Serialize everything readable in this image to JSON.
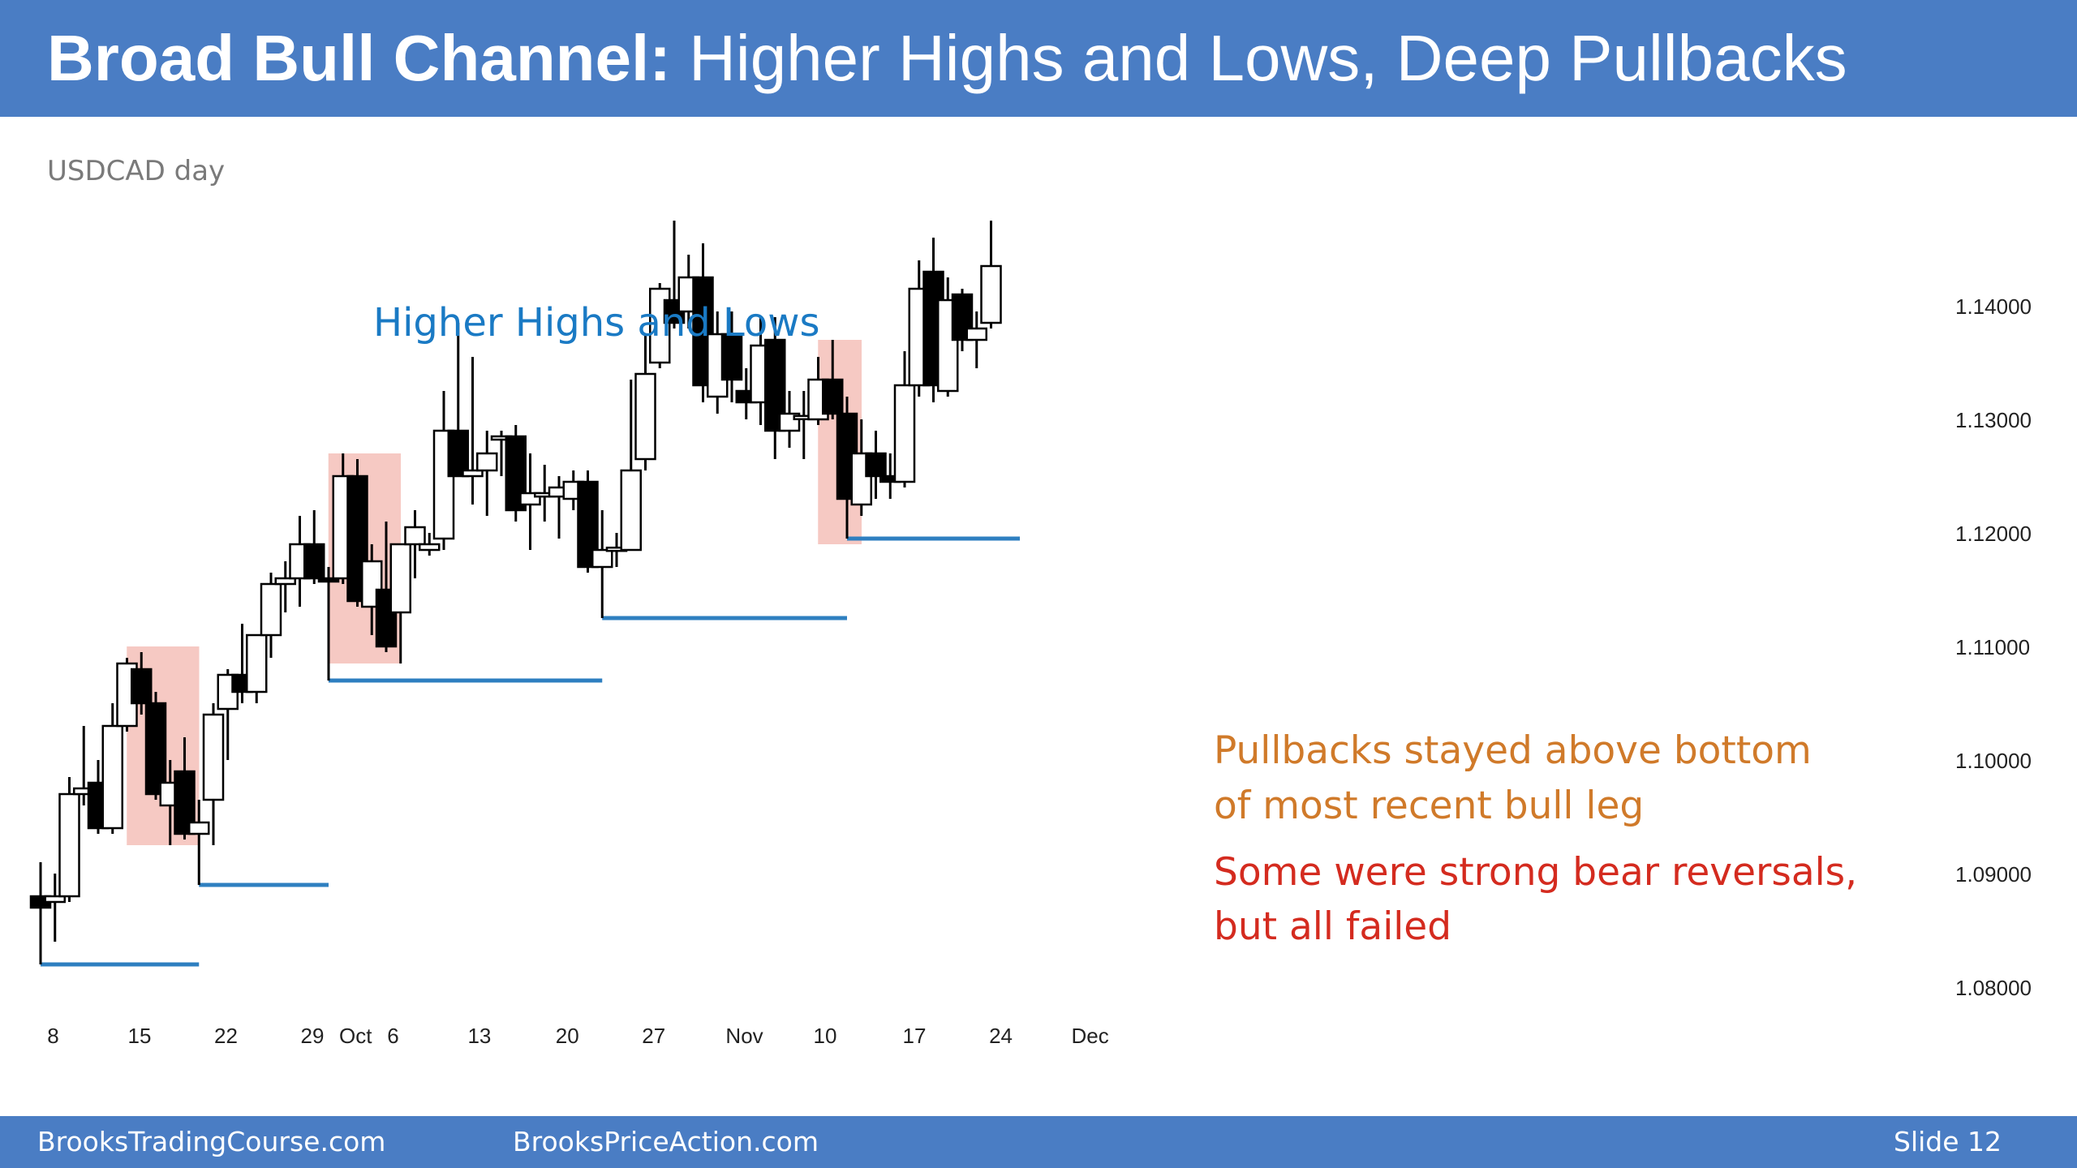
{
  "header": {
    "title_bold": "Broad Bull Channel:",
    "title_rest": "Higher Highs and Lows, Deep Pullbacks"
  },
  "chart_data": {
    "type": "candlestick",
    "subtitle": "USDCAD day",
    "ylim": [
      1.076,
      1.15
    ],
    "y_ticks": [
      "1.14000",
      "1.13000",
      "1.12000",
      "1.11000",
      "1.10000",
      "1.09000",
      "1.08000"
    ],
    "x_ticks": [
      "8",
      "15",
      "22",
      "29",
      "Oct",
      "6",
      "13",
      "20",
      "27",
      "Nov",
      "10",
      "17",
      "24",
      "Dec"
    ],
    "candles": [
      {
        "o": 1.088,
        "h": 1.091,
        "l": 1.082,
        "c": 1.087
      },
      {
        "o": 1.0875,
        "h": 1.09,
        "l": 1.084,
        "c": 1.088
      },
      {
        "o": 1.088,
        "h": 1.0985,
        "l": 1.0875,
        "c": 1.097
      },
      {
        "o": 1.097,
        "h": 1.103,
        "l": 1.096,
        "c": 1.0975
      },
      {
        "o": 1.098,
        "h": 1.1,
        "l": 1.0935,
        "c": 1.094
      },
      {
        "o": 1.094,
        "h": 1.105,
        "l": 1.0935,
        "c": 1.103
      },
      {
        "o": 1.103,
        "h": 1.109,
        "l": 1.1025,
        "c": 1.1085
      },
      {
        "o": 1.108,
        "h": 1.1095,
        "l": 1.104,
        "c": 1.105
      },
      {
        "o": 1.105,
        "h": 1.106,
        "l": 1.0965,
        "c": 1.097
      },
      {
        "o": 1.096,
        "h": 1.1,
        "l": 1.0925,
        "c": 1.098
      },
      {
        "o": 1.099,
        "h": 1.102,
        "l": 1.093,
        "c": 1.0935
      },
      {
        "o": 1.0935,
        "h": 1.0965,
        "l": 1.089,
        "c": 1.0945
      },
      {
        "o": 1.0965,
        "h": 1.105,
        "l": 1.0925,
        "c": 1.104
      },
      {
        "o": 1.1045,
        "h": 1.108,
        "l": 1.1,
        "c": 1.1075
      },
      {
        "o": 1.1075,
        "h": 1.112,
        "l": 1.105,
        "c": 1.106
      },
      {
        "o": 1.106,
        "h": 1.111,
        "l": 1.105,
        "c": 1.111
      },
      {
        "o": 1.111,
        "h": 1.1165,
        "l": 1.109,
        "c": 1.1155
      },
      {
        "o": 1.1155,
        "h": 1.1175,
        "l": 1.113,
        "c": 1.116
      },
      {
        "o": 1.116,
        "h": 1.1215,
        "l": 1.1135,
        "c": 1.119
      },
      {
        "o": 1.119,
        "h": 1.122,
        "l": 1.1155,
        "c": 1.116
      },
      {
        "o": 1.116,
        "h": 1.117,
        "l": 1.107,
        "c": 1.1158
      },
      {
        "o": 1.116,
        "h": 1.127,
        "l": 1.1155,
        "c": 1.125
      },
      {
        "o": 1.125,
        "h": 1.1265,
        "l": 1.1135,
        "c": 1.114
      },
      {
        "o": 1.1135,
        "h": 1.119,
        "l": 1.111,
        "c": 1.1175
      },
      {
        "o": 1.115,
        "h": 1.121,
        "l": 1.1095,
        "c": 1.11
      },
      {
        "o": 1.113,
        "h": 1.1185,
        "l": 1.1085,
        "c": 1.119
      },
      {
        "o": 1.119,
        "h": 1.122,
        "l": 1.116,
        "c": 1.1205
      },
      {
        "o": 1.1185,
        "h": 1.12,
        "l": 1.118,
        "c": 1.119
      },
      {
        "o": 1.1195,
        "h": 1.1325,
        "l": 1.1185,
        "c": 1.129
      },
      {
        "o": 1.129,
        "h": 1.1385,
        "l": 1.125,
        "c": 1.125
      },
      {
        "o": 1.125,
        "h": 1.1355,
        "l": 1.1225,
        "c": 1.1255
      },
      {
        "o": 1.1255,
        "h": 1.129,
        "l": 1.1215,
        "c": 1.127
      },
      {
        "o": 1.1283,
        "h": 1.129,
        "l": 1.125,
        "c": 1.1285
      },
      {
        "o": 1.1285,
        "h": 1.1295,
        "l": 1.121,
        "c": 1.122
      },
      {
        "o": 1.1225,
        "h": 1.127,
        "l": 1.1185,
        "c": 1.1235
      },
      {
        "o": 1.1232,
        "h": 1.126,
        "l": 1.121,
        "c": 1.1235
      },
      {
        "o": 1.1232,
        "h": 1.125,
        "l": 1.1195,
        "c": 1.124
      },
      {
        "o": 1.123,
        "h": 1.1255,
        "l": 1.122,
        "c": 1.1245
      },
      {
        "o": 1.1245,
        "h": 1.1255,
        "l": 1.1165,
        "c": 1.117
      },
      {
        "o": 1.117,
        "h": 1.122,
        "l": 1.1125,
        "c": 1.1185
      },
      {
        "o": 1.1185,
        "h": 1.12,
        "l": 1.117,
        "c": 1.1187
      },
      {
        "o": 1.1185,
        "h": 1.1335,
        "l": 1.1185,
        "c": 1.1255
      },
      {
        "o": 1.1265,
        "h": 1.1375,
        "l": 1.1255,
        "c": 1.134
      },
      {
        "o": 1.135,
        "h": 1.142,
        "l": 1.1345,
        "c": 1.1415
      },
      {
        "o": 1.1405,
        "h": 1.1475,
        "l": 1.138,
        "c": 1.1385
      },
      {
        "o": 1.1395,
        "h": 1.1445,
        "l": 1.138,
        "c": 1.1425
      },
      {
        "o": 1.1425,
        "h": 1.1455,
        "l": 1.1315,
        "c": 1.133
      },
      {
        "o": 1.132,
        "h": 1.1395,
        "l": 1.1305,
        "c": 1.1375
      },
      {
        "o": 1.1375,
        "h": 1.1395,
        "l": 1.1315,
        "c": 1.1335
      },
      {
        "o": 1.1325,
        "h": 1.1345,
        "l": 1.13,
        "c": 1.1315
      },
      {
        "o": 1.1315,
        "h": 1.139,
        "l": 1.1295,
        "c": 1.1365
      },
      {
        "o": 1.137,
        "h": 1.139,
        "l": 1.1265,
        "c": 1.129
      },
      {
        "o": 1.129,
        "h": 1.1325,
        "l": 1.1275,
        "c": 1.1305
      },
      {
        "o": 1.1303,
        "h": 1.1325,
        "l": 1.1265,
        "c": 1.1303
      },
      {
        "o": 1.13,
        "h": 1.1355,
        "l": 1.1295,
        "c": 1.1335
      },
      {
        "o": 1.1335,
        "h": 1.137,
        "l": 1.13,
        "c": 1.1305
      },
      {
        "o": 1.1305,
        "h": 1.132,
        "l": 1.1195,
        "c": 1.123
      },
      {
        "o": 1.1225,
        "h": 1.13,
        "l": 1.1215,
        "c": 1.127
      },
      {
        "o": 1.127,
        "h": 1.129,
        "l": 1.123,
        "c": 1.125
      },
      {
        "o": 1.125,
        "h": 1.127,
        "l": 1.123,
        "c": 1.1245
      },
      {
        "o": 1.1245,
        "h": 1.136,
        "l": 1.124,
        "c": 1.133
      },
      {
        "o": 1.133,
        "h": 1.144,
        "l": 1.132,
        "c": 1.1415
      },
      {
        "o": 1.143,
        "h": 1.146,
        "l": 1.1315,
        "c": 1.133
      },
      {
        "o": 1.1325,
        "h": 1.1425,
        "l": 1.132,
        "c": 1.1405
      },
      {
        "o": 1.141,
        "h": 1.1415,
        "l": 1.136,
        "c": 1.137
      },
      {
        "o": 1.137,
        "h": 1.1395,
        "l": 1.1345,
        "c": 1.138
      },
      {
        "o": 1.1385,
        "h": 1.1475,
        "l": 1.138,
        "c": 1.1435
      }
    ],
    "highlight_boxes": [
      {
        "from_candle": 7,
        "to_candle": 10,
        "y_low": 1.0925,
        "y_high": 1.11
      },
      {
        "from_candle": 21,
        "to_candle": 24,
        "y_low": 1.1085,
        "y_high": 1.127
      },
      {
        "from_candle": 55,
        "to_candle": 56,
        "y_low": 1.119,
        "y_high": 1.137
      }
    ],
    "support_lines": [
      {
        "y": 1.082,
        "from_candle": 0,
        "to_candle": 11
      },
      {
        "y": 1.089,
        "from_candle": 11,
        "to_candle": 20
      },
      {
        "y": 1.107,
        "from_candle": 20,
        "to_candle": 39
      },
      {
        "y": 1.1125,
        "from_candle": 39,
        "to_candle": 56
      },
      {
        "y": 1.1195,
        "from_candle": 56,
        "to_candle": 68
      }
    ],
    "annotations": {
      "higher_highs": "Higher Highs and Lows",
      "pullbacks_line1": "Pullbacks stayed above bottom",
      "pullbacks_line2": "of most recent bull leg",
      "reversals_line1": "Some were strong bear reversals,",
      "reversals_line2": "but all failed"
    },
    "colors": {
      "bull_body": "#ffffff",
      "bear_body": "#000000",
      "highlight": "#f6c9c3",
      "support_line": "#2e7fc0",
      "annotation_blue": "#1a7ac4",
      "annotation_orange": "#d07a2a",
      "annotation_red": "#d42b1f"
    }
  },
  "footer": {
    "left": "BrooksTradingCourse.com",
    "center": "BrooksPriceAction.com",
    "right": "Slide  12"
  }
}
